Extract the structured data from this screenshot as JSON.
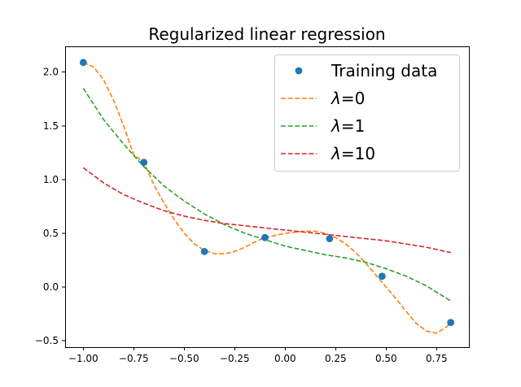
{
  "chart_data": {
    "type": "line",
    "title": "Regularized linear regression",
    "xlabel": "",
    "ylabel": "",
    "xlim": [
      -1.09,
      0.91
    ],
    "ylim": [
      -0.56,
      2.24
    ],
    "xticks": [
      -1.0,
      -0.75,
      -0.5,
      -0.25,
      0.0,
      0.25,
      0.5,
      0.75
    ],
    "xtick_labels": [
      "−1.00",
      "−0.75",
      "−0.50",
      "−0.25",
      "0.00",
      "0.25",
      "0.50",
      "0.75"
    ],
    "yticks": [
      -0.5,
      0.0,
      0.5,
      1.0,
      1.5,
      2.0
    ],
    "ytick_labels": [
      "−0.5",
      "0.0",
      "0.5",
      "1.0",
      "1.5",
      "2.0"
    ],
    "grid": false,
    "legend_position": "top-right",
    "scatter": {
      "name": "Training data",
      "color": "#1f77b4",
      "x": [
        -1.0,
        -0.7,
        -0.4,
        -0.1,
        0.22,
        0.48,
        0.82
      ],
      "y": [
        2.09,
        1.16,
        0.33,
        0.46,
        0.45,
        0.1,
        -0.33
      ]
    },
    "series": [
      {
        "name": "λ=0",
        "lambda_value": "0",
        "color": "#ff7f0e",
        "style": "dashed",
        "x": [
          -1.0,
          -0.95,
          -0.9,
          -0.85,
          -0.8,
          -0.75,
          -0.7,
          -0.65,
          -0.6,
          -0.55,
          -0.5,
          -0.45,
          -0.4,
          -0.35,
          -0.3,
          -0.25,
          -0.2,
          -0.15,
          -0.1,
          -0.05,
          0.0,
          0.05,
          0.1,
          0.15,
          0.2,
          0.25,
          0.3,
          0.35,
          0.4,
          0.45,
          0.5,
          0.55,
          0.6,
          0.65,
          0.7,
          0.75,
          0.8,
          0.82
        ],
        "y": [
          2.09,
          2.05,
          1.93,
          1.74,
          1.5,
          1.23,
          1.16,
          0.95,
          0.78,
          0.63,
          0.5,
          0.4,
          0.34,
          0.31,
          0.31,
          0.33,
          0.37,
          0.42,
          0.46,
          0.48,
          0.5,
          0.51,
          0.52,
          0.52,
          0.5,
          0.46,
          0.4,
          0.32,
          0.22,
          0.11,
          0.0,
          -0.11,
          -0.23,
          -0.34,
          -0.41,
          -0.43,
          -0.37,
          -0.33
        ]
      },
      {
        "name": "λ=1",
        "lambda_value": "1",
        "color": "#2ca02c",
        "style": "dashed",
        "x": [
          -1.0,
          -0.9,
          -0.8,
          -0.7,
          -0.6,
          -0.5,
          -0.4,
          -0.3,
          -0.2,
          -0.1,
          0.0,
          0.1,
          0.2,
          0.3,
          0.4,
          0.5,
          0.6,
          0.7,
          0.82
        ],
        "y": [
          1.85,
          1.56,
          1.33,
          1.12,
          0.94,
          0.8,
          0.68,
          0.58,
          0.5,
          0.44,
          0.38,
          0.34,
          0.3,
          0.27,
          0.23,
          0.17,
          0.1,
          0.01,
          -0.13
        ]
      },
      {
        "name": "λ=10",
        "lambda_value": "10",
        "color": "#d62728",
        "style": "dashed",
        "x": [
          -1.0,
          -0.9,
          -0.8,
          -0.7,
          -0.6,
          -0.5,
          -0.4,
          -0.3,
          -0.2,
          -0.1,
          0.0,
          0.1,
          0.2,
          0.3,
          0.4,
          0.5,
          0.6,
          0.7,
          0.82
        ],
        "y": [
          1.11,
          0.97,
          0.86,
          0.78,
          0.71,
          0.66,
          0.62,
          0.59,
          0.57,
          0.55,
          0.53,
          0.51,
          0.49,
          0.47,
          0.45,
          0.43,
          0.4,
          0.37,
          0.32
        ]
      }
    ],
    "legend": {
      "scatter_label": "Training data",
      "lambda_symbol": "λ",
      "entries": [
        "Training data",
        "λ=0",
        "λ=1",
        "λ=10"
      ]
    }
  }
}
